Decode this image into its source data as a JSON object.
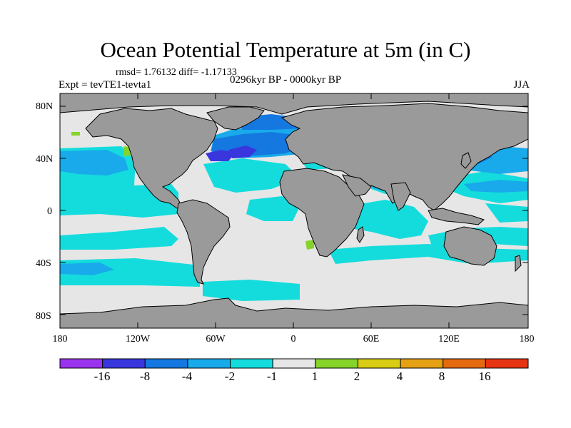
{
  "title": "Ocean Potential Temperature at 5m (in C)",
  "stats": "rmsd= 1.76132 diff= -1.17133",
  "expt": "Expt = tevTE1-tevta1",
  "period": "0296kyr BP - 0000kyr BP",
  "season": "JJA",
  "lat_labels": [
    "80N",
    "40N",
    "0",
    "40S",
    "80S"
  ],
  "lon_labels": [
    "180",
    "120W",
    "60W",
    "0",
    "60E",
    "120E",
    "180"
  ],
  "colorbar": {
    "colors": [
      "#9a33ee",
      "#3a36dd",
      "#1478e0",
      "#18aaea",
      "#14dcdc",
      "#e6e6e6",
      "#86d42a",
      "#d8cc14",
      "#e6a014",
      "#e46a10",
      "#e63412"
    ],
    "labels": [
      "-16",
      "-8",
      "-4",
      "-2",
      "-1",
      "1",
      "2",
      "4",
      "8",
      "16"
    ]
  },
  "colors": {
    "land": "#9a9a9a",
    "no_change": "#e6e6e6",
    "cool_light": "#14dcdc",
    "cool_mid": "#18aaea",
    "cool_strong": "#1478e0",
    "cool_extreme": "#3a36dd",
    "warm_light": "#86d42a"
  }
}
